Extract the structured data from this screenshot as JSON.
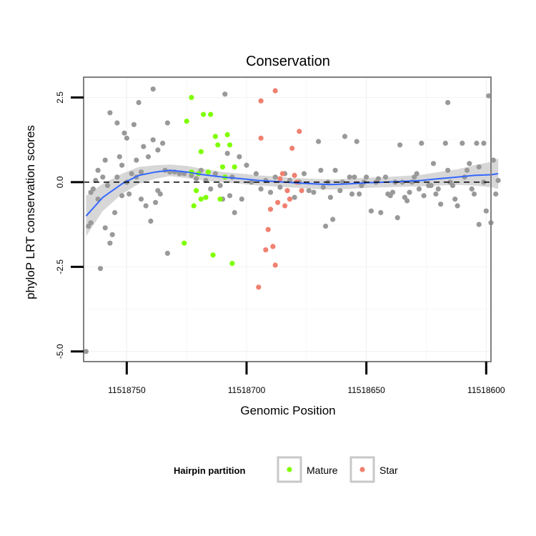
{
  "chart_data": {
    "type": "scatter",
    "title": "Conservation",
    "xlabel": "Genomic Position",
    "ylabel": "phyloP LRT conservation scores",
    "x_reversed": true,
    "xlim": [
      11518768,
      11518598
    ],
    "ylim": [
      -5.3,
      3.1
    ],
    "x_ticks": [
      11518750,
      11518700,
      11518650,
      11518600
    ],
    "x_tick_labels": [
      "11518750",
      "11518700",
      "11518650",
      "11518600"
    ],
    "y_ticks": [
      -5,
      -2.5,
      0,
      2.5
    ],
    "y_tick_labels": [
      "-5.0",
      "-2.5",
      "0.0",
      "2.5"
    ],
    "reference_line_y": 0,
    "legend": {
      "title": "Hairpin partition",
      "position": "bottom",
      "entries": [
        {
          "label": "Mature",
          "color": "#7fff00"
        },
        {
          "label": "Star",
          "color": "#f08070"
        }
      ]
    },
    "colors": {
      "other": "#999999",
      "mature": "#7fff00",
      "star": "#f08070",
      "smooth": "#3366ff",
      "band": "#bdbdbd"
    },
    "series": [
      {
        "name": "Other",
        "points": [
          [
            11518767,
            -5.0
          ],
          [
            11518766,
            -1.3
          ],
          [
            11518765,
            -0.3
          ],
          [
            11518765,
            -1.2
          ],
          [
            11518764,
            -0.2
          ],
          [
            11518763,
            0.05
          ],
          [
            11518762,
            0.35
          ],
          [
            11518762,
            -0.5
          ],
          [
            11518761,
            -2.55
          ],
          [
            11518760,
            0.15
          ],
          [
            11518759,
            -1.35
          ],
          [
            11518759,
            0.65
          ],
          [
            11518758,
            -0.1
          ],
          [
            11518757,
            -1.8
          ],
          [
            11518757,
            2.05
          ],
          [
            11518756,
            -1.55
          ],
          [
            11518755,
            -0.9
          ],
          [
            11518754,
            1.75
          ],
          [
            11518754,
            0.15
          ],
          [
            11518753,
            0.75
          ],
          [
            11518752,
            -0.4
          ],
          [
            11518752,
            0.5
          ],
          [
            11518751,
            1.45
          ],
          [
            11518750,
            1.3
          ],
          [
            11518750,
            0.0
          ],
          [
            11518749,
            -0.35
          ],
          [
            11518748,
            0.25
          ],
          [
            11518747,
            1.7
          ],
          [
            11518746,
            0.65
          ],
          [
            11518746,
            0.15
          ],
          [
            11518745,
            2.35
          ],
          [
            11518744,
            0.3
          ],
          [
            11518744,
            -0.5
          ],
          [
            11518743,
            1.05
          ],
          [
            11518742,
            -0.7
          ],
          [
            11518741,
            0.75
          ],
          [
            11518740,
            -1.15
          ],
          [
            11518739,
            2.75
          ],
          [
            11518739,
            1.25
          ],
          [
            11518738,
            -0.6
          ],
          [
            11518737,
            -0.25
          ],
          [
            11518737,
            0.95
          ],
          [
            11518736,
            -0.35
          ],
          [
            11518735,
            1.15
          ],
          [
            11518734,
            0.35
          ],
          [
            11518733,
            1.75
          ],
          [
            11518733,
            -2.1
          ],
          [
            11518732,
            0.3
          ],
          [
            11518730,
            0.3
          ],
          [
            11518728,
            0.25
          ],
          [
            11518726,
            0.25
          ],
          [
            11518723,
            0.2
          ],
          [
            11518721,
            0.1
          ],
          [
            11518719,
            0.35
          ],
          [
            11518717,
            0.05
          ],
          [
            11518715,
            -0.2
          ],
          [
            11518713,
            0.25
          ],
          [
            11518711,
            -0.1
          ],
          [
            11518710,
            -0.5
          ],
          [
            11518709,
            2.6
          ],
          [
            11518708,
            0.85
          ],
          [
            11518707,
            -0.4
          ],
          [
            11518706,
            0.15
          ],
          [
            11518705,
            -0.9
          ],
          [
            11518703,
            0.75
          ],
          [
            11518702,
            -0.5
          ],
          [
            11518700,
            0.5
          ],
          [
            11518698,
            0.0
          ],
          [
            11518696,
            0.25
          ],
          [
            11518694,
            -0.2
          ],
          [
            11518692,
            0.05
          ],
          [
            11518690,
            -0.3
          ],
          [
            11518688,
            0.15
          ],
          [
            11518686,
            -0.15
          ],
          [
            11518684,
            0.25
          ],
          [
            11518682,
            0.05
          ],
          [
            11518680,
            -0.45
          ],
          [
            11518678,
            0.0
          ],
          [
            11518676,
            0.25
          ],
          [
            11518674,
            -0.25
          ],
          [
            11518672,
            -0.3
          ],
          [
            11518670,
            1.2
          ],
          [
            11518669,
            0.35
          ],
          [
            11518668,
            -0.15
          ],
          [
            11518667,
            -1.3
          ],
          [
            11518666,
            0.0
          ],
          [
            11518665,
            -0.45
          ],
          [
            11518664,
            -1.1
          ],
          [
            11518663,
            0.35
          ],
          [
            11518661,
            -0.25
          ],
          [
            11518660,
            0.0
          ],
          [
            11518659,
            1.35
          ],
          [
            11518657,
            0.15
          ],
          [
            11518656,
            -0.35
          ],
          [
            11518655,
            0.15
          ],
          [
            11518654,
            1.2
          ],
          [
            11518653,
            -0.35
          ],
          [
            11518652,
            -0.1
          ],
          [
            11518651,
            0.0
          ],
          [
            11518650,
            0.15
          ],
          [
            11518648,
            -0.85
          ],
          [
            11518646,
            0.0
          ],
          [
            11518645,
            0.1
          ],
          [
            11518644,
            -0.9
          ],
          [
            11518642,
            0.15
          ],
          [
            11518641,
            -0.35
          ],
          [
            11518640,
            -0.4
          ],
          [
            11518639,
            -0.3
          ],
          [
            11518638,
            0.0
          ],
          [
            11518637,
            -1.05
          ],
          [
            11518636,
            1.1
          ],
          [
            11518635,
            0.0
          ],
          [
            11518634,
            -0.45
          ],
          [
            11518633,
            -0.55
          ],
          [
            11518632,
            -0.3
          ],
          [
            11518631,
            0.0
          ],
          [
            11518630,
            0.15
          ],
          [
            11518629,
            0.25
          ],
          [
            11518628,
            -0.2
          ],
          [
            11518627,
            1.15
          ],
          [
            11518626,
            -0.4
          ],
          [
            11518624,
            -0.1
          ],
          [
            11518623,
            -0.1
          ],
          [
            11518622,
            0.55
          ],
          [
            11518621,
            -0.35
          ],
          [
            11518620,
            -0.2
          ],
          [
            11518619,
            -0.65
          ],
          [
            11518617,
            1.15
          ],
          [
            11518616,
            2.35
          ],
          [
            11518616,
            0.35
          ],
          [
            11518615,
            0.0
          ],
          [
            11518614,
            -0.1
          ],
          [
            11518613,
            -0.5
          ],
          [
            11518612,
            -0.7
          ],
          [
            11518610,
            1.15
          ],
          [
            11518609,
            0.15
          ],
          [
            11518608,
            0.35
          ],
          [
            11518607,
            0.55
          ],
          [
            11518606,
            -0.2
          ],
          [
            11518605,
            -0.35
          ],
          [
            11518604,
            1.15
          ],
          [
            11518603,
            0.45
          ],
          [
            11518603,
            -1.25
          ],
          [
            11518601,
            1.15
          ],
          [
            11518601,
            0.0
          ],
          [
            11518600,
            -0.85
          ],
          [
            11518599,
            2.55
          ],
          [
            11518598,
            -1.2
          ],
          [
            11518597,
            0.65
          ],
          [
            11518596,
            -0.35
          ],
          [
            11518595,
            0.05
          ]
        ]
      },
      {
        "name": "Mature",
        "points": [
          [
            11518726,
            -1.8
          ],
          [
            11518725,
            1.8
          ],
          [
            11518723,
            0.3
          ],
          [
            11518723,
            2.5
          ],
          [
            11518722,
            -0.7
          ],
          [
            11518721,
            -0.25
          ],
          [
            11518720,
            0.25
          ],
          [
            11518719,
            0.9
          ],
          [
            11518719,
            -0.5
          ],
          [
            11518718,
            2.0
          ],
          [
            11518717,
            -0.45
          ],
          [
            11518716,
            0.3
          ],
          [
            11518715,
            2.0
          ],
          [
            11518714,
            -2.15
          ],
          [
            11518713,
            1.35
          ],
          [
            11518712,
            1.1
          ],
          [
            11518711,
            -0.5
          ],
          [
            11518710,
            0.45
          ],
          [
            11518709,
            0.15
          ],
          [
            11518708,
            1.4
          ],
          [
            11518707,
            1.1
          ],
          [
            11518706,
            -2.4
          ],
          [
            11518705,
            0.45
          ]
        ]
      },
      {
        "name": "Star",
        "points": [
          [
            11518695,
            -3.1
          ],
          [
            11518694,
            2.4
          ],
          [
            11518694,
            1.3
          ],
          [
            11518692,
            -2.0
          ],
          [
            11518691,
            -1.4
          ],
          [
            11518690,
            -0.8
          ],
          [
            11518689,
            -1.9
          ],
          [
            11518688,
            -2.45
          ],
          [
            11518688,
            2.7
          ],
          [
            11518687,
            -0.6
          ],
          [
            11518686,
            0.1
          ],
          [
            11518685,
            0.25
          ],
          [
            11518684,
            -0.7
          ],
          [
            11518683,
            -0.25
          ],
          [
            11518682,
            -0.5
          ],
          [
            11518681,
            1.0
          ],
          [
            11518680,
            0.2
          ],
          [
            11518679,
            0.0
          ],
          [
            11518678,
            1.5
          ],
          [
            11518677,
            -0.25
          ]
        ]
      }
    ],
    "smooth_line": {
      "x": [
        11518767,
        11518760,
        11518752,
        11518745,
        11518738,
        11518732,
        11518725,
        11518718,
        11518710,
        11518702,
        11518695,
        11518688,
        11518680,
        11518672,
        11518665,
        11518657,
        11518650,
        11518642,
        11518635,
        11518627,
        11518620,
        11518612,
        11518605,
        11518598,
        11518595
      ],
      "y": [
        -1.0,
        -0.45,
        -0.05,
        0.2,
        0.3,
        0.35,
        0.3,
        0.22,
        0.15,
        0.1,
        0.05,
        0.02,
        -0.02,
        -0.05,
        -0.07,
        -0.05,
        -0.02,
        0.0,
        0.02,
        0.05,
        0.1,
        0.15,
        0.2,
        0.22,
        0.25
      ],
      "lower": [
        -1.6,
        -0.85,
        -0.35,
        -0.05,
        0.1,
        0.18,
        0.12,
        0.05,
        0.0,
        -0.05,
        -0.1,
        -0.13,
        -0.16,
        -0.2,
        -0.22,
        -0.2,
        -0.17,
        -0.15,
        -0.14,
        -0.12,
        -0.1,
        -0.08,
        -0.1,
        -0.15,
        -0.2
      ],
      "upper": [
        -0.4,
        -0.05,
        0.25,
        0.45,
        0.5,
        0.52,
        0.48,
        0.39,
        0.3,
        0.25,
        0.2,
        0.17,
        0.12,
        0.1,
        0.08,
        0.1,
        0.13,
        0.15,
        0.18,
        0.22,
        0.3,
        0.38,
        0.5,
        0.6,
        0.7
      ]
    }
  }
}
